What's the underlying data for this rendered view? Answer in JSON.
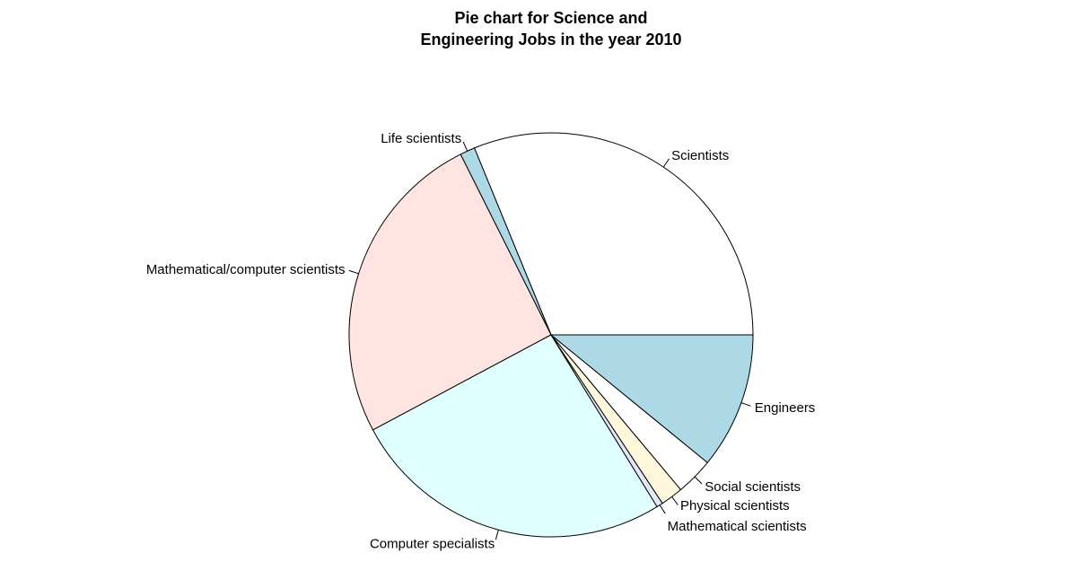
{
  "chart_data": {
    "type": "pie",
    "title_lines": [
      "Pie chart for Science and",
      "Engineering Jobs in the year 2010"
    ],
    "start_angle_deg": 0,
    "direction": "counterclockwise",
    "labels": [
      "Scientists",
      "Life scientists",
      "Mathematical/computer scientists",
      "Computer specialists",
      "Mathematical scientists",
      "Physical scientists",
      "Social scientists",
      "Engineers"
    ],
    "values": [
      31.2,
      1.2,
      25.4,
      26.0,
      0.5,
      1.8,
      3.0,
      10.9
    ],
    "colors": [
      "#FFFFFF",
      "#ADD8E6",
      "#FFE4E1",
      "#E0FFFF",
      "#E6E6FA",
      "#FFF8DC",
      "#FFFFFF",
      "#ADD8E6"
    ]
  }
}
